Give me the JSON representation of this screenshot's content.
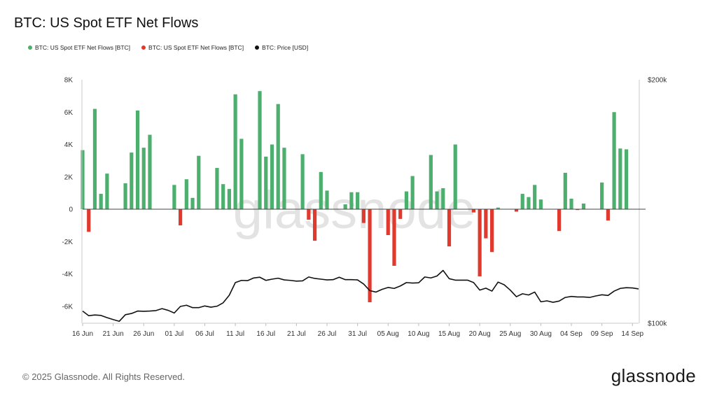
{
  "title": "BTC: US Spot ETF Net Flows",
  "legend": [
    {
      "label": "BTC: US Spot ETF Net Flows [BTC]",
      "color": "#4caf6e"
    },
    {
      "label": "BTC: US Spot ETF Net Flows [BTC]",
      "color": "#e03a2f"
    },
    {
      "label": "BTC: Price [USD]",
      "color": "#111111"
    }
  ],
  "footer": "© 2025 Glassnode. All Rights Reserved.",
  "brand": "glassnode",
  "watermark": "glassnode",
  "chart_data": {
    "type": "bar",
    "title": "BTC: US Spot ETF Net Flows",
    "x_tick_labels": [
      "16 Jun",
      "21 Jun",
      "26 Jun",
      "01 Jul",
      "06 Jul",
      "11 Jul",
      "16 Jul",
      "21 Jul",
      "26 Jul",
      "31 Jul",
      "05 Aug",
      "10 Aug",
      "15 Aug",
      "20 Aug",
      "25 Aug",
      "30 Aug",
      "04 Sep",
      "09 Sep",
      "14 Sep"
    ],
    "y_tick_labels": [
      "8K",
      "6K",
      "4K",
      "2K",
      "0",
      "-2K",
      "-4K",
      "-6K"
    ],
    "y_ticks": [
      8000,
      6000,
      4000,
      2000,
      0,
      -2000,
      -4000,
      -6000
    ],
    "ylim": [
      -7000,
      8000
    ],
    "y2_tick_labels": [
      "$200k",
      "$100k"
    ],
    "y2lim": [
      100000,
      200000
    ],
    "positive_color": "#4caf6e",
    "negative_color": "#e03a2f",
    "price_color": "#111111",
    "series": [
      {
        "name": "BTC: US Spot ETF Net Flows [BTC]",
        "points": [
          {
            "day": 0,
            "value": 3650
          },
          {
            "day": 1,
            "value": -1400
          },
          {
            "day": 2,
            "value": 6200
          },
          {
            "day": 3,
            "value": 950
          },
          {
            "day": 4,
            "value": 2200
          },
          {
            "day": 7,
            "value": 1600
          },
          {
            "day": 8,
            "value": 3500
          },
          {
            "day": 9,
            "value": 6100
          },
          {
            "day": 10,
            "value": 3800
          },
          {
            "day": 11,
            "value": 4600
          },
          {
            "day": 15,
            "value": 1500
          },
          {
            "day": 16,
            "value": -1000
          },
          {
            "day": 17,
            "value": 1850
          },
          {
            "day": 18,
            "value": 700
          },
          {
            "day": 19,
            "value": 3300
          },
          {
            "day": 22,
            "value": 2550
          },
          {
            "day": 23,
            "value": 1550
          },
          {
            "day": 24,
            "value": 1250
          },
          {
            "day": 25,
            "value": 7100
          },
          {
            "day": 26,
            "value": 4350
          },
          {
            "day": 29,
            "value": 7300
          },
          {
            "day": 30,
            "value": 3250
          },
          {
            "day": 31,
            "value": 4000
          },
          {
            "day": 32,
            "value": 6500
          },
          {
            "day": 33,
            "value": 3800
          },
          {
            "day": 36,
            "value": 3400
          },
          {
            "day": 37,
            "value": -650
          },
          {
            "day": 38,
            "value": -1950
          },
          {
            "day": 39,
            "value": 2300
          },
          {
            "day": 40,
            "value": 1150
          },
          {
            "day": 43,
            "value": 300
          },
          {
            "day": 44,
            "value": 1050
          },
          {
            "day": 45,
            "value": 1050
          },
          {
            "day": 46,
            "value": -850
          },
          {
            "day": 47,
            "value": -5750
          },
          {
            "day": 50,
            "value": -1600
          },
          {
            "day": 51,
            "value": -3500
          },
          {
            "day": 52,
            "value": -600
          },
          {
            "day": 53,
            "value": 1100
          },
          {
            "day": 54,
            "value": 2050
          },
          {
            "day": 57,
            "value": 3350
          },
          {
            "day": 58,
            "value": 1100
          },
          {
            "day": 59,
            "value": 1300
          },
          {
            "day": 60,
            "value": -2300
          },
          {
            "day": 61,
            "value": 4000
          },
          {
            "day": 64,
            "value": -200
          },
          {
            "day": 65,
            "value": -4150
          },
          {
            "day": 66,
            "value": -1800
          },
          {
            "day": 67,
            "value": -2650
          },
          {
            "day": 68,
            "value": 100
          },
          {
            "day": 71,
            "value": -150
          },
          {
            "day": 72,
            "value": 950
          },
          {
            "day": 73,
            "value": 750
          },
          {
            "day": 74,
            "value": 1500
          },
          {
            "day": 75,
            "value": 600
          },
          {
            "day": 78,
            "value": -1350
          },
          {
            "day": 79,
            "value": 2250
          },
          {
            "day": 80,
            "value": 650
          },
          {
            "day": 81,
            "value": -50
          },
          {
            "day": 82,
            "value": 350
          },
          {
            "day": 85,
            "value": 1650
          },
          {
            "day": 86,
            "value": -700
          },
          {
            "day": 87,
            "value": 6000
          },
          {
            "day": 88,
            "value": 3750
          },
          {
            "day": 89,
            "value": 3700
          }
        ]
      },
      {
        "name": "BTC: Price [USD]",
        "points": [
          [
            0,
            105000
          ],
          [
            1,
            103100
          ],
          [
            2,
            103400
          ],
          [
            3,
            103200
          ],
          [
            4,
            102300
          ],
          [
            5,
            101500
          ],
          [
            6,
            100800
          ],
          [
            7,
            103500
          ],
          [
            8,
            104000
          ],
          [
            9,
            105000
          ],
          [
            10,
            104900
          ],
          [
            11,
            105000
          ],
          [
            12,
            105200
          ],
          [
            13,
            106000
          ],
          [
            14,
            105300
          ],
          [
            15,
            104200
          ],
          [
            16,
            106900
          ],
          [
            17,
            107400
          ],
          [
            18,
            106400
          ],
          [
            19,
            106400
          ],
          [
            20,
            107100
          ],
          [
            21,
            106600
          ],
          [
            22,
            107000
          ],
          [
            23,
            108400
          ],
          [
            24,
            111500
          ],
          [
            25,
            116700
          ],
          [
            26,
            117600
          ],
          [
            27,
            117500
          ],
          [
            28,
            118600
          ],
          [
            29,
            118900
          ],
          [
            30,
            117600
          ],
          [
            31,
            118100
          ],
          [
            32,
            118500
          ],
          [
            33,
            117800
          ],
          [
            34,
            117600
          ],
          [
            35,
            117300
          ],
          [
            36,
            117400
          ],
          [
            37,
            119000
          ],
          [
            38,
            118400
          ],
          [
            39,
            118100
          ],
          [
            40,
            117800
          ],
          [
            41,
            117900
          ],
          [
            42,
            118900
          ],
          [
            43,
            117900
          ],
          [
            44,
            117900
          ],
          [
            45,
            117800
          ],
          [
            46,
            116100
          ],
          [
            47,
            113400
          ],
          [
            48,
            112800
          ],
          [
            49,
            113900
          ],
          [
            50,
            114700
          ],
          [
            51,
            114300
          ],
          [
            52,
            115300
          ],
          [
            53,
            116700
          ],
          [
            54,
            116500
          ],
          [
            55,
            116600
          ],
          [
            56,
            119000
          ],
          [
            57,
            118600
          ],
          [
            58,
            119400
          ],
          [
            59,
            121700
          ],
          [
            60,
            118300
          ],
          [
            61,
            117700
          ],
          [
            62,
            117700
          ],
          [
            63,
            117700
          ],
          [
            64,
            116700
          ],
          [
            65,
            113600
          ],
          [
            66,
            114400
          ],
          [
            67,
            113200
          ],
          [
            68,
            116900
          ],
          [
            69,
            115800
          ],
          [
            70,
            113600
          ],
          [
            71,
            110900
          ],
          [
            72,
            112100
          ],
          [
            73,
            111600
          ],
          [
            74,
            112800
          ],
          [
            75,
            108800
          ],
          [
            76,
            109200
          ],
          [
            77,
            108600
          ],
          [
            78,
            109100
          ],
          [
            79,
            110600
          ],
          [
            80,
            111000
          ],
          [
            81,
            110800
          ],
          [
            82,
            110800
          ],
          [
            83,
            110600
          ],
          [
            84,
            111200
          ],
          [
            85,
            111700
          ],
          [
            86,
            111400
          ],
          [
            87,
            113200
          ],
          [
            88,
            114300
          ],
          [
            89,
            114600
          ],
          [
            90,
            114500
          ],
          [
            91,
            114100
          ]
        ]
      }
    ]
  }
}
